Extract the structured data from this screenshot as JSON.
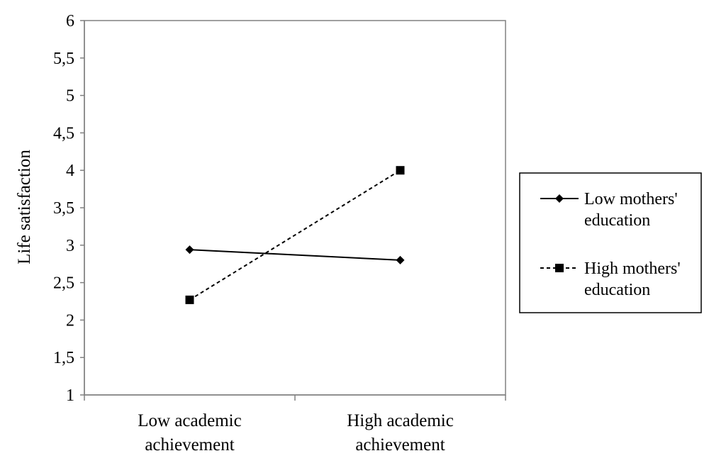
{
  "chart_data": {
    "type": "line",
    "xlabel": "",
    "ylabel": "Life satisfaction",
    "ylim": [
      1,
      6
    ],
    "y_ticks": [
      "1",
      "1,5",
      "2",
      "2,5",
      "3",
      "3,5",
      "4",
      "4,5",
      "5",
      "5,5",
      "6"
    ],
    "categories": [
      [
        "Low academic",
        "achievement"
      ],
      [
        "High academic",
        "achievement"
      ]
    ],
    "grid": false,
    "legend_position": "right",
    "series": [
      {
        "name": [
          "Low mothers'",
          "education"
        ],
        "values": [
          2.94,
          2.8
        ],
        "marker": "diamond",
        "line_style": "solid",
        "color": "#000000"
      },
      {
        "name": [
          "High mothers'",
          "education"
        ],
        "values": [
          2.27,
          4.0
        ],
        "marker": "square",
        "line_style": "dashed",
        "color": "#000000"
      }
    ]
  }
}
